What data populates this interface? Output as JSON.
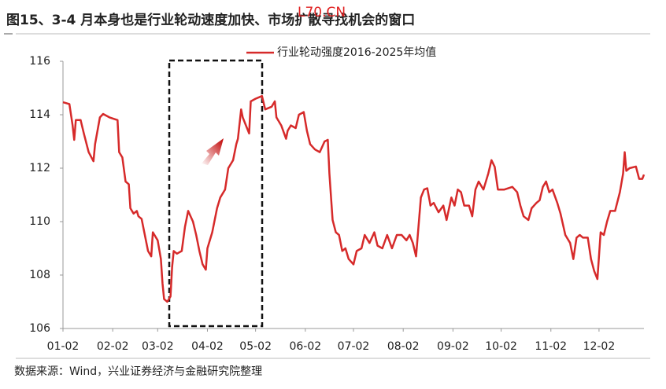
{
  "chart_data": {
    "type": "line",
    "title": "图15、3-4 月本身也是行业轮动速度加快、市场扩散寻找机会的窗口",
    "watermark": "L70.CN",
    "source": "数据来源：Wind，兴业证券经济与金融研究院整理",
    "x": [
      0,
      4,
      6,
      7,
      8,
      11,
      13,
      16,
      19,
      20,
      23,
      25,
      29,
      34,
      35,
      37,
      39,
      41,
      42,
      44,
      46,
      47,
      49,
      51,
      53,
      55,
      56,
      59,
      61,
      62,
      63,
      65,
      67,
      68,
      69,
      71,
      74,
      76,
      78,
      81,
      83,
      85,
      87,
      89,
      90,
      93,
      96,
      98,
      101,
      103,
      104,
      106,
      108,
      109,
      111,
      112,
      114,
      116,
      117,
      120,
      124,
      126,
      130,
      132,
      133,
      136,
      139,
      140,
      142,
      145,
      147,
      150,
      152,
      154,
      157,
      160,
      163,
      165,
      166,
      168,
      170,
      172,
      174,
      176,
      178,
      181,
      183,
      186,
      188,
      191,
      194,
      196,
      199,
      202,
      205,
      208,
      211,
      214,
      216,
      218,
      220,
      223,
      225,
      227,
      229,
      231,
      234,
      237,
      239,
      242,
      244,
      246,
      248,
      250,
      253,
      255,
      257,
      259,
      262,
      265,
      267,
      269,
      271,
      275,
      280,
      283,
      285,
      287,
      290,
      292,
      295,
      297,
      299,
      301,
      303,
      305,
      308,
      310,
      313,
      316,
      318,
      320,
      322,
      324,
      327,
      329,
      331,
      333,
      335,
      337,
      339,
      341,
      344,
      347,
      349,
      350,
      351,
      353,
      357,
      359,
      361,
      362
    ],
    "series": [
      {
        "name": "行业轮动强度2016-2025年均值",
        "color": "#d62a2a",
        "values": [
          114.47,
          114.4,
          113.6,
          113.06,
          113.8,
          113.8,
          113.3,
          112.6,
          112.26,
          112.9,
          113.9,
          114.03,
          113.9,
          113.8,
          112.6,
          112.4,
          111.5,
          111.4,
          110.5,
          110.3,
          110.4,
          110.2,
          110.1,
          109.5,
          108.9,
          108.7,
          109.6,
          109.3,
          108.6,
          107.7,
          107.1,
          107.0,
          107.2,
          108.3,
          108.9,
          108.8,
          108.9,
          109.8,
          110.4,
          110.0,
          109.5,
          108.9,
          108.4,
          108.2,
          109.0,
          109.6,
          110.5,
          110.9,
          111.2,
          112.0,
          112.1,
          112.3,
          112.9,
          113.1,
          114.2,
          113.9,
          113.6,
          113.3,
          114.5,
          114.6,
          114.7,
          114.2,
          114.3,
          114.5,
          113.9,
          113.6,
          113.1,
          113.4,
          113.6,
          113.5,
          114.0,
          114.1,
          113.4,
          112.9,
          112.7,
          112.6,
          113.0,
          113.06,
          111.8,
          110.06,
          109.6,
          109.5,
          108.9,
          109.0,
          108.6,
          108.4,
          108.9,
          109.0,
          109.5,
          109.2,
          109.6,
          109.1,
          109.0,
          109.5,
          109.0,
          109.5,
          109.5,
          109.3,
          109.5,
          109.2,
          108.7,
          110.9,
          111.2,
          111.25,
          110.6,
          110.7,
          110.35,
          110.6,
          110.06,
          110.9,
          110.6,
          111.2,
          111.1,
          110.6,
          110.6,
          110.2,
          111.2,
          111.5,
          111.2,
          111.8,
          112.3,
          112.05,
          111.2,
          111.2,
          111.3,
          111.1,
          110.6,
          110.2,
          110.06,
          110.5,
          110.7,
          110.8,
          111.3,
          111.5,
          111.1,
          111.2,
          110.7,
          110.3,
          109.5,
          109.2,
          108.6,
          109.4,
          109.5,
          109.4,
          109.4,
          108.6,
          108.15,
          107.85,
          109.6,
          109.5,
          110.0,
          110.4,
          110.4,
          111.1,
          111.8,
          112.6,
          111.9,
          112.0,
          112.06,
          111.6,
          111.6,
          111.76
        ]
      }
    ],
    "xlim": [
      0,
      362
    ],
    "xticks": [
      {
        "value": 0,
        "label": "01-02"
      },
      {
        "value": 31,
        "label": "02-02"
      },
      {
        "value": 59,
        "label": "03-02"
      },
      {
        "value": 90,
        "label": "04-02"
      },
      {
        "value": 120,
        "label": "05-02"
      },
      {
        "value": 151,
        "label": "06-02"
      },
      {
        "value": 181,
        "label": "07-02"
      },
      {
        "value": 212,
        "label": "08-02"
      },
      {
        "value": 243,
        "label": "09-02"
      },
      {
        "value": 273,
        "label": "10-02"
      },
      {
        "value": 304,
        "label": "11-02"
      },
      {
        "value": 334,
        "label": "12-02"
      }
    ],
    "ylim": [
      106,
      116
    ],
    "yticks": [
      106,
      108,
      110,
      112,
      114,
      116
    ],
    "legend": "top"
  }
}
